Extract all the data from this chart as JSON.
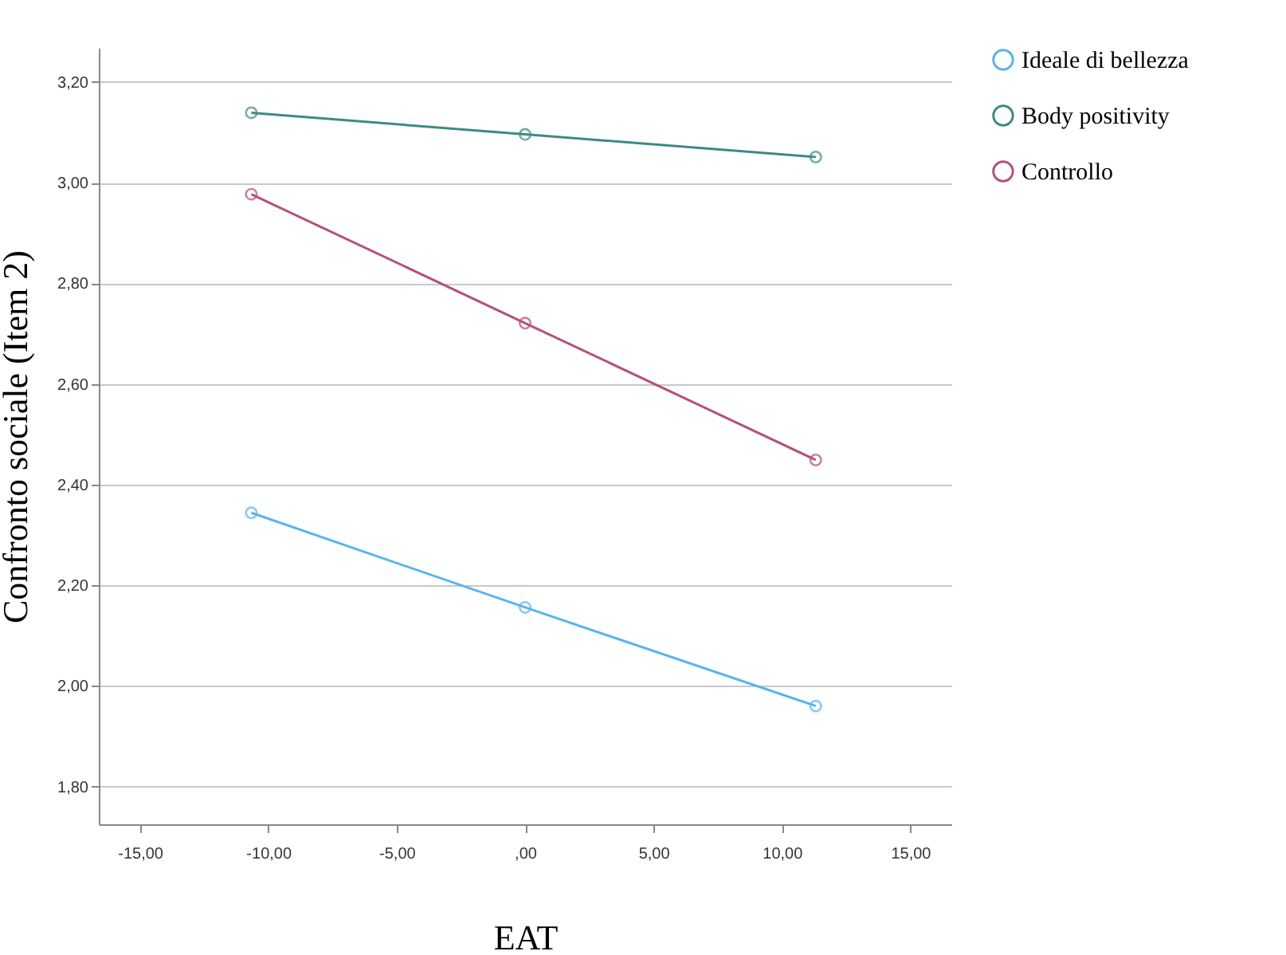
{
  "chart_data": {
    "type": "line",
    "xlabel": "EAT",
    "ylabel": "Confronto  sociale (Item 2)",
    "x": [
      -10.66,
      0,
      11.32
    ],
    "series": [
      {
        "name": "Ideale di bellezza",
        "color": "#5ab4ea",
        "values": [
          2.344,
          2.156,
          1.96
        ]
      },
      {
        "name": "Body positivity",
        "color": "#3d8a85",
        "values": [
          3.139,
          3.096,
          3.051
        ]
      },
      {
        "name": "Controllo",
        "color": "#b5517a",
        "values": [
          2.977,
          2.721,
          2.449
        ]
      }
    ],
    "xlim": [
      -16.6,
      16.6
    ],
    "xticks": [
      {
        "value": -15,
        "label": "-15,00"
      },
      {
        "value": -10,
        "label": "-10,00"
      },
      {
        "value": -5,
        "label": "-5,00"
      },
      {
        "value": 0,
        "label": ",00"
      },
      {
        "value": 5,
        "label": "5,00"
      },
      {
        "value": 10,
        "label": "10,00"
      },
      {
        "value": 15,
        "label": "15,00"
      }
    ],
    "ylim": [
      1.725,
      3.268
    ],
    "yticks": [
      {
        "value": 1.8,
        "label": "1,80"
      },
      {
        "value": 2.0,
        "label": "2,00"
      },
      {
        "value": 2.2,
        "label": "2,20"
      },
      {
        "value": 2.4,
        "label": "2,40"
      },
      {
        "value": 2.6,
        "label": "2,60"
      },
      {
        "value": 2.8,
        "label": "2,80"
      },
      {
        "value": 3.0,
        "label": "3,00"
      },
      {
        "value": 3.2,
        "label": "3,20"
      }
    ],
    "grid": "y",
    "legend": "top right",
    "marker": "circle",
    "line_style": "solid"
  }
}
